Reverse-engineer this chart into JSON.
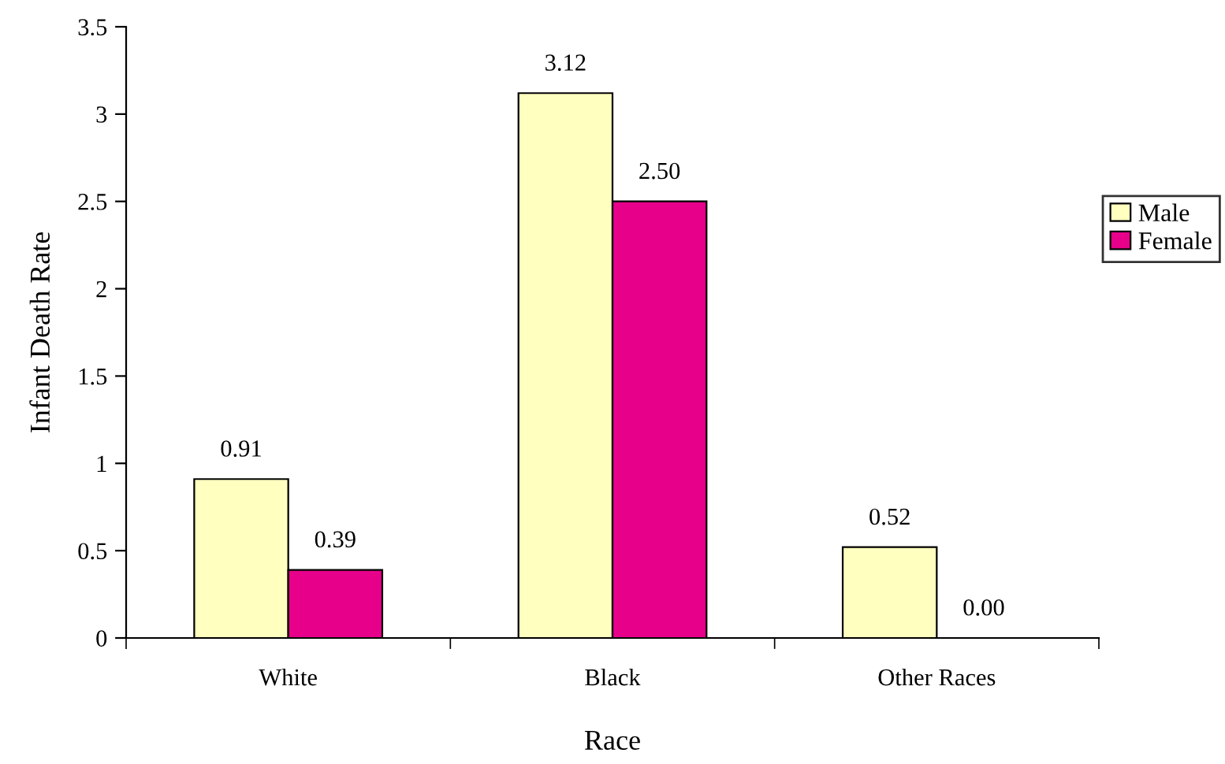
{
  "chart_data": {
    "type": "bar",
    "xlabel": "Race",
    "ylabel": "Infant Death Rate",
    "categories": [
      "White",
      "Black",
      "Other Races"
    ],
    "series": [
      {
        "name": "Male",
        "color": "#ffffc0",
        "values": [
          0.91,
          3.12,
          0.52
        ],
        "value_labels": [
          "0.91",
          "3.12",
          "0.52"
        ]
      },
      {
        "name": "Female",
        "color": "#e6008a",
        "values": [
          0.39,
          2.5,
          0.0
        ],
        "value_labels": [
          "0.39",
          "2.50",
          "0.00"
        ]
      }
    ],
    "ylim": [
      0,
      3.5
    ],
    "yticks": [
      0,
      0.5,
      1,
      1.5,
      2,
      2.5,
      3,
      3.5
    ],
    "grid": false,
    "legend": "right"
  }
}
